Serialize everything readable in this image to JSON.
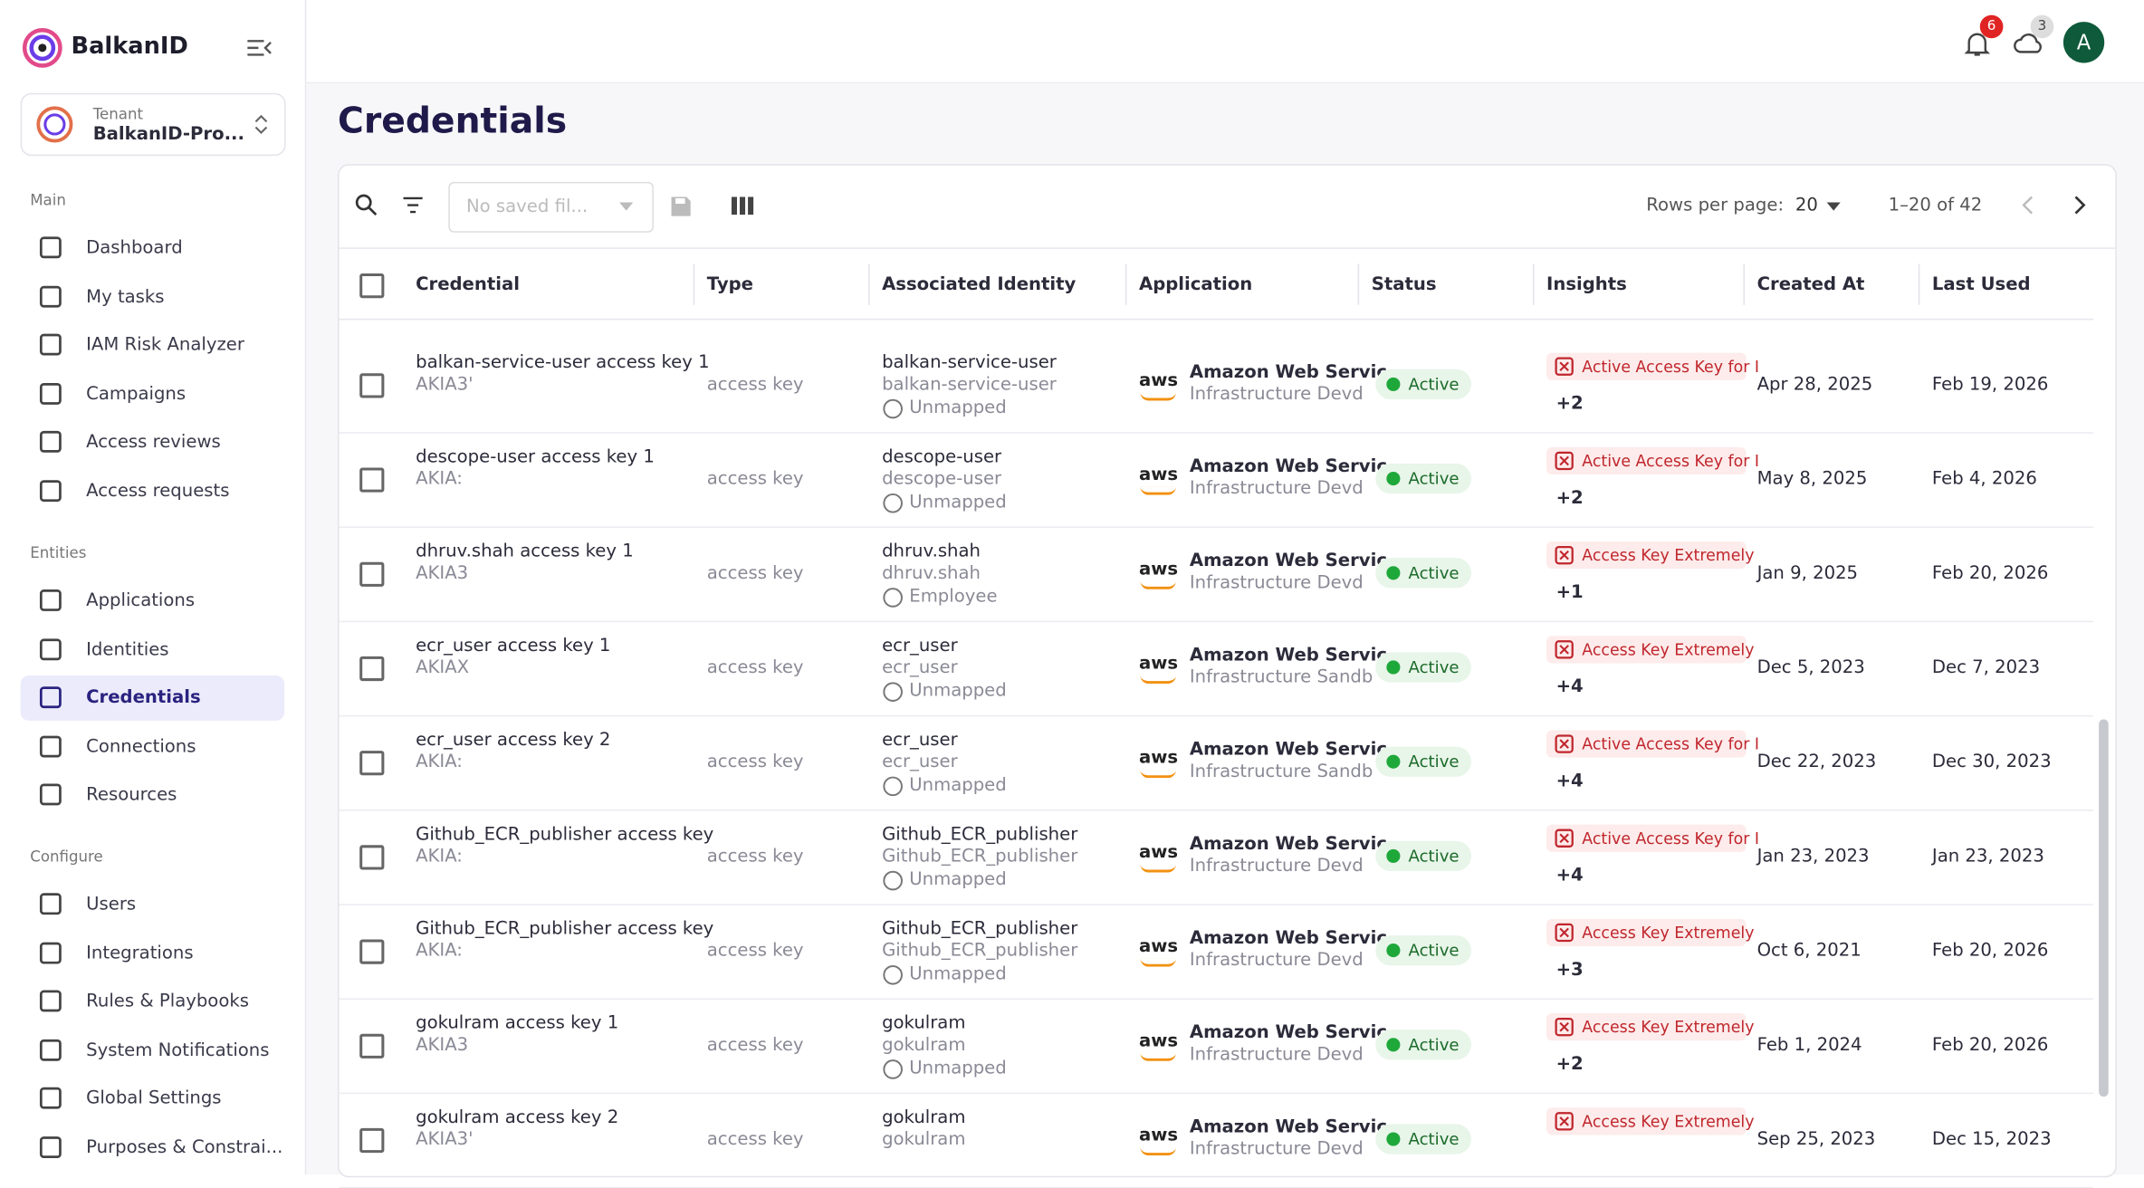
{
  "sidebar": {
    "brand": "BalkanID",
    "tenant_label": "Tenant",
    "tenant_name": "BalkanID-Pro...",
    "sections": [
      {
        "title": "Main",
        "items": [
          "Dashboard",
          "My tasks",
          "IAM Risk Analyzer",
          "Campaigns",
          "Access reviews",
          "Access requests"
        ]
      },
      {
        "title": "Entities",
        "items": [
          "Applications",
          "Identities",
          "Credentials",
          "Connections",
          "Resources"
        ]
      },
      {
        "title": "Configure",
        "items": [
          "Users",
          "Integrations",
          "Rules & Playbooks",
          "System Notifications",
          "Global Settings",
          "Purposes & Constrai..."
        ]
      }
    ],
    "selected": "Credentials"
  },
  "header": {
    "notifications": "6",
    "cloud": "3",
    "avatar": "A"
  },
  "page": {
    "title": "Credentials"
  },
  "toolbar": {
    "filter_placeholder": "No saved fil...",
    "rows_per_page_label": "Rows per page:",
    "rows_per_page": "20",
    "range": "1–20 of 42"
  },
  "table": {
    "columns": [
      "Credential",
      "Type",
      "Associated Identity",
      "Application",
      "Status",
      "Insights",
      "Created At",
      "Last Used"
    ],
    "rows": [
      {
        "name": "balkan-service-user access key 1",
        "key": "AKIA3'",
        "type": "access key",
        "identity": "balkan-service-user",
        "identity_sub": "balkan-service-user",
        "identity_type": "Unmapped",
        "app": "Amazon Web Servic",
        "app_sub": "Infrastructure Devd",
        "status": "Active",
        "insight": "Active Access Key for I",
        "more": "+2",
        "created": "Apr 28, 2025",
        "last_used": "Feb 19, 2026"
      },
      {
        "name": "descope-user access key 1",
        "key": "AKIA:",
        "type": "access key",
        "identity": "descope-user",
        "identity_sub": "descope-user",
        "identity_type": "Unmapped",
        "app": "Amazon Web Servic",
        "app_sub": "Infrastructure Devd",
        "status": "Active",
        "insight": "Active Access Key for I",
        "more": "+2",
        "created": "May 8, 2025",
        "last_used": "Feb 4, 2026"
      },
      {
        "name": "dhruv.shah access key 1",
        "key": "AKIA3",
        "type": "access key",
        "identity": "dhruv.shah",
        "identity_sub": "dhruv.shah",
        "identity_type": "Employee",
        "app": "Amazon Web Servic",
        "app_sub": "Infrastructure Devd",
        "status": "Active",
        "insight": "Access Key Extremely",
        "more": "+1",
        "created": "Jan 9, 2025",
        "last_used": "Feb 20, 2026"
      },
      {
        "name": "ecr_user access key 1",
        "key": "AKIAX",
        "type": "access key",
        "identity": "ecr_user",
        "identity_sub": "ecr_user",
        "identity_type": "Unmapped",
        "app": "Amazon Web Servic",
        "app_sub": "Infrastructure Sandb",
        "status": "Active",
        "insight": "Access Key Extremely",
        "more": "+4",
        "created": "Dec 5, 2023",
        "last_used": "Dec 7, 2023"
      },
      {
        "name": "ecr_user access key 2",
        "key": "AKIA:",
        "type": "access key",
        "identity": "ecr_user",
        "identity_sub": "ecr_user",
        "identity_type": "Unmapped",
        "app": "Amazon Web Servic",
        "app_sub": "Infrastructure Sandb",
        "status": "Active",
        "insight": "Active Access Key for I",
        "more": "+4",
        "created": "Dec 22, 2023",
        "last_used": "Dec 30, 2023"
      },
      {
        "name": "Github_ECR_publisher access key",
        "key": "AKIA:",
        "type": "access key",
        "identity": "Github_ECR_publisher",
        "identity_sub": "Github_ECR_publisher",
        "identity_type": "Unmapped",
        "app": "Amazon Web Servic",
        "app_sub": "Infrastructure Devd",
        "status": "Active",
        "insight": "Active Access Key for I",
        "more": "+4",
        "created": "Jan 23, 2023",
        "last_used": "Jan 23, 2023"
      },
      {
        "name": "Github_ECR_publisher access key",
        "key": "AKIA:",
        "type": "access key",
        "identity": "Github_ECR_publisher",
        "identity_sub": "Github_ECR_publisher",
        "identity_type": "Unmapped",
        "app": "Amazon Web Servic",
        "app_sub": "Infrastructure Devd",
        "status": "Active",
        "insight": "Access Key Extremely",
        "more": "+3",
        "created": "Oct 6, 2021",
        "last_used": "Feb 20, 2026"
      },
      {
        "name": "gokulram access key 1",
        "key": "AKIA3",
        "type": "access key",
        "identity": "gokulram",
        "identity_sub": "gokulram",
        "identity_type": "Unmapped",
        "app": "Amazon Web Servic",
        "app_sub": "Infrastructure Devd",
        "status": "Active",
        "insight": "Access Key Extremely",
        "more": "+2",
        "created": "Feb 1, 2024",
        "last_used": "Feb 20, 2026"
      },
      {
        "name": "gokulram access key 2",
        "key": "AKIA3'",
        "type": "access key",
        "identity": "gokulram",
        "identity_sub": "gokulram",
        "app": "Amazon Web Servic",
        "app_sub": "Infrastructure Devd",
        "status": "Active",
        "insight": "Access Key Extremely",
        "created": "Sep 25, 2023",
        "last_used": "Dec 15, 2023"
      }
    ]
  },
  "aws_logo": "aws"
}
